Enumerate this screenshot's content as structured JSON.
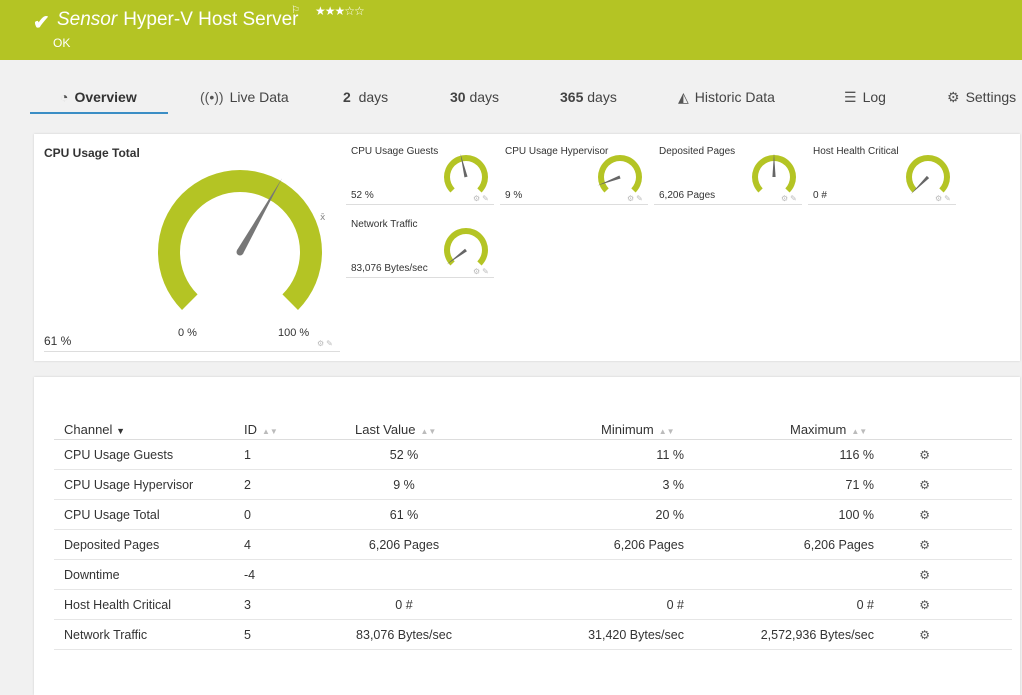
{
  "header": {
    "check_icon": "check-icon",
    "type_label": "Sensor",
    "name": "Hyper-V Host Server",
    "status": "OK",
    "stars": "★★★☆☆",
    "color": "#b4c424"
  },
  "tabs": [
    {
      "label": "Overview",
      "icon": "gauge-icon"
    },
    {
      "label": "Live Data",
      "icon": "broadcast-icon"
    },
    {
      "num": "2",
      "label": "days"
    },
    {
      "num": "30",
      "label": "days"
    },
    {
      "num": "365",
      "label": "days"
    },
    {
      "label": "Historic Data",
      "icon": "area-chart-icon"
    },
    {
      "label": "Log",
      "icon": "list-icon"
    },
    {
      "label": "Settings",
      "icon": "gear-icon"
    }
  ],
  "big_gauge": {
    "title": "CPU Usage Total",
    "value": "61 %",
    "min_label": "0 %",
    "max_label": "100 %",
    "fraction": 0.61
  },
  "mini_gauges": [
    {
      "title": "CPU Usage Guests",
      "value": "52 %",
      "fraction": 0.45
    },
    {
      "title": "CPU Usage Hypervisor",
      "value": "9 %",
      "fraction": 0.09
    },
    {
      "title": "Deposited Pages",
      "value": "6,206 Pages",
      "fraction": 0.5
    },
    {
      "title": "Host Health Critical",
      "value": "0 #",
      "fraction": 0.0
    },
    {
      "title": "Network Traffic",
      "value": "83,076 Bytes/sec",
      "fraction": 0.03
    }
  ],
  "table": {
    "headers": {
      "channel": "Channel",
      "id": "ID",
      "last": "Last Value",
      "min": "Minimum",
      "max": "Maximum"
    },
    "rows": [
      {
        "channel": "CPU Usage Guests",
        "id": "1",
        "last": "52 %",
        "min": "11 %",
        "max": "116 %"
      },
      {
        "channel": "CPU Usage Hypervisor",
        "id": "2",
        "last": "9 %",
        "min": "3 %",
        "max": "71 %"
      },
      {
        "channel": "CPU Usage Total",
        "id": "0",
        "last": "61 %",
        "min": "20 %",
        "max": "100 %"
      },
      {
        "channel": "Deposited Pages",
        "id": "4",
        "last": "6,206 Pages",
        "min": "6,206 Pages",
        "max": "6,206 Pages"
      },
      {
        "channel": "Downtime",
        "id": "-4",
        "last": "",
        "min": "",
        "max": ""
      },
      {
        "channel": "Host Health Critical",
        "id": "3",
        "last": "0 #",
        "min": "0 #",
        "max": "0 #"
      },
      {
        "channel": "Network Traffic",
        "id": "5",
        "last": "83,076 Bytes/sec",
        "min": "31,420 Bytes/sec",
        "max": "2,572,936 Bytes/sec"
      }
    ]
  }
}
